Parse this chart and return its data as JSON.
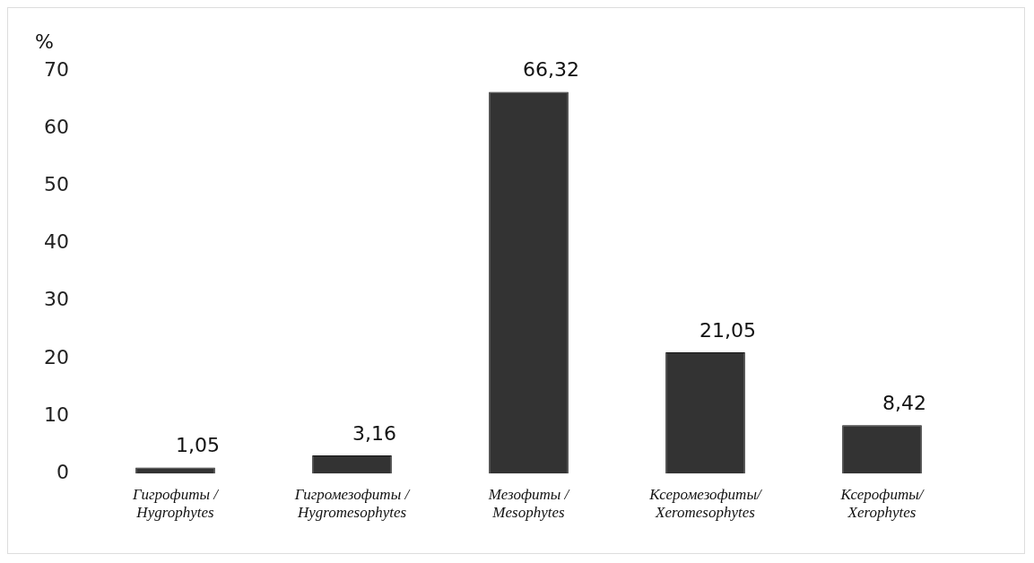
{
  "chart_data": {
    "type": "bar",
    "ylabel": "%",
    "categories": [
      "Гигрофиты /\nHygrophytes",
      "Гигромезофиты /\nHygromesophytes",
      "Мезофиты /\nMesophytes",
      "Ксеромезофиты/\nXeromesophytes",
      "Ксерофиты/\nXerophytes"
    ],
    "values": [
      1.05,
      3.16,
      66.32,
      21.05,
      8.42
    ],
    "value_labels": [
      "1,05",
      "3,16",
      "66,32",
      "21,05",
      "8,42"
    ],
    "color": "#333333",
    "ylim": [
      0,
      70
    ],
    "yticks": [
      0,
      10,
      20,
      30,
      40,
      50,
      60,
      70
    ],
    "grid": false,
    "legend": false
  }
}
